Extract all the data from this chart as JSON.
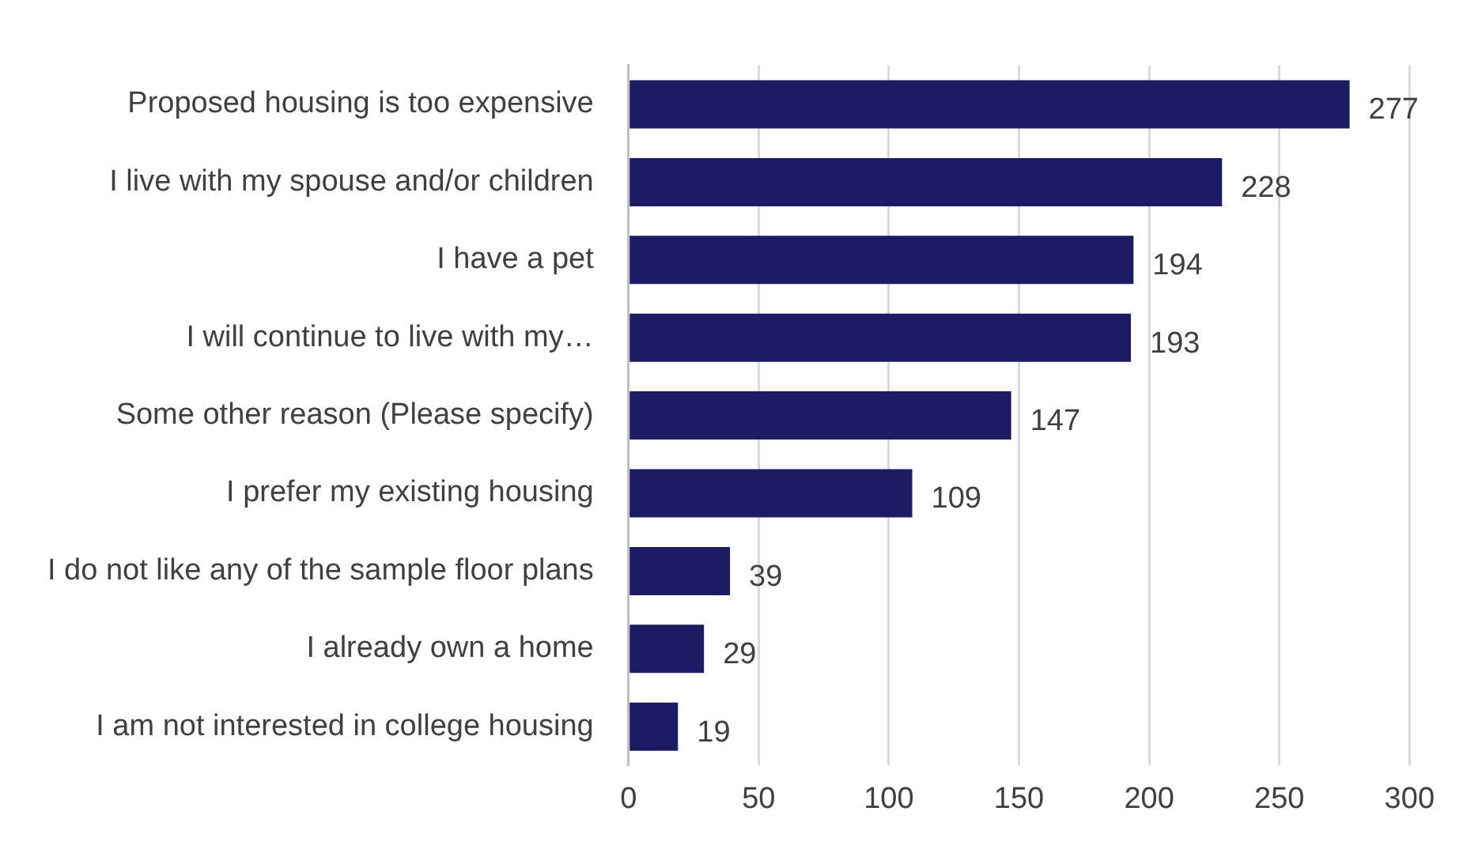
{
  "chart_data": {
    "type": "bar",
    "orientation": "horizontal",
    "categories": [
      "Proposed housing is too expensive",
      "I live with my spouse and/or children",
      "I have a pet",
      "I will continue to live with my…",
      "Some other reason (Please specify)",
      "I prefer my existing housing",
      "I do not like any of the sample floor plans",
      "I already own a home",
      "I am not interested in college housing"
    ],
    "values": [
      277,
      228,
      194,
      193,
      147,
      109,
      39,
      29,
      19
    ],
    "color": "#1c1b63",
    "xlim": [
      0,
      300
    ],
    "xticks": [
      0,
      50,
      100,
      150,
      200,
      250,
      300
    ],
    "grid": "x",
    "data_labels": true,
    "legend": false
  }
}
